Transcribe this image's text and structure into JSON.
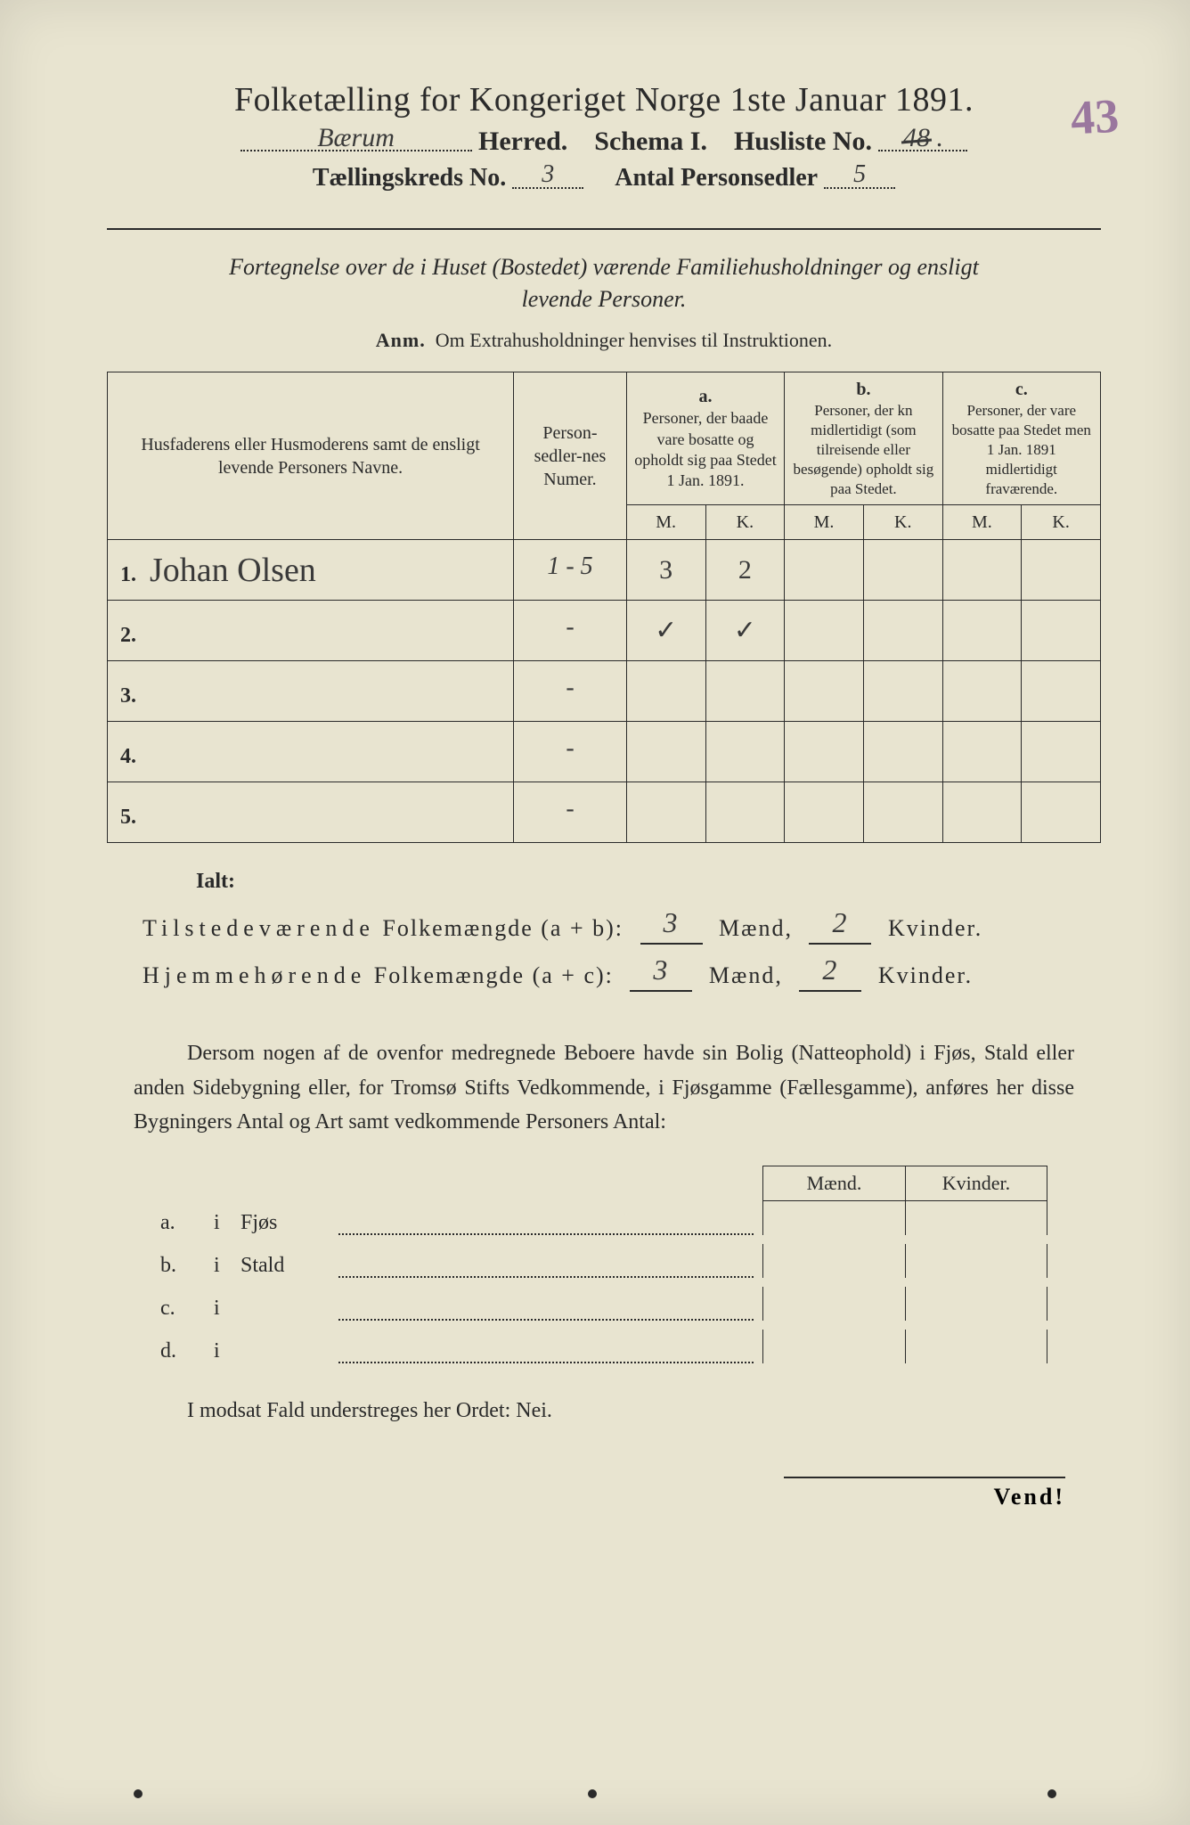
{
  "colors": {
    "paper": "#e8e4d0",
    "ink": "#2a2a2a",
    "handwriting": "#3a3a3a",
    "stamp": "#7a4a8a",
    "background": "#0a0a0a"
  },
  "header": {
    "title": "Folketælling for Kongeriget Norge 1ste Januar 1891.",
    "herred_label": "Herred.",
    "herred_value": "Bærum",
    "schema_label": "Schema I.",
    "husliste_label": "Husliste No.",
    "husliste_value_struck": "48",
    "husliste_value": ".",
    "stamp_value": "43",
    "tkreds_label": "Tællingskreds No.",
    "tkreds_value": "3",
    "antal_label": "Antal Personsedler",
    "antal_value": "5"
  },
  "subhead": {
    "line1": "Fortegnelse over de i Huset (Bostedet) værende Familiehusholdninger og ensligt",
    "line2": "levende Personer.",
    "anm_label": "Anm.",
    "anm_text": "Om Extrahusholdninger henvises til Instruktionen."
  },
  "table": {
    "columns": {
      "names_header": "Husfaderens eller Husmoderens samt de ensligt levende Personers Navne.",
      "numer_header": "Person-sedler-nes Numer.",
      "a_label": "a.",
      "a_text": "Personer, der baade vare bosatte og opholdt sig paa Stedet 1 Jan. 1891.",
      "b_label": "b.",
      "b_text": "Personer, der kn midlertidigt (som tilreisende eller besøgende) opholdt sig paa Stedet.",
      "c_label": "c.",
      "c_text": "Personer, der vare bosatte paa Stedet men 1 Jan. 1891 midlertidigt fraværende.",
      "m_label": "M.",
      "k_label": "K."
    },
    "rows": [
      {
        "n": "1.",
        "name": "Johan Olsen",
        "numer": "1 - 5",
        "aM": "3",
        "aK": "2",
        "bM": "",
        "bK": "",
        "cM": "",
        "cK": ""
      },
      {
        "n": "2.",
        "name": "",
        "numer": "-",
        "aM": "✓",
        "aK": "✓",
        "bM": "",
        "bK": "",
        "cM": "",
        "cK": ""
      },
      {
        "n": "3.",
        "name": "",
        "numer": "-",
        "aM": "",
        "aK": "",
        "bM": "",
        "bK": "",
        "cM": "",
        "cK": ""
      },
      {
        "n": "4.",
        "name": "",
        "numer": "-",
        "aM": "",
        "aK": "",
        "bM": "",
        "bK": "",
        "cM": "",
        "cK": ""
      },
      {
        "n": "5.",
        "name": "",
        "numer": "-",
        "aM": "",
        "aK": "",
        "bM": "",
        "bK": "",
        "cM": "",
        "cK": ""
      }
    ]
  },
  "totals": {
    "ialt": "Ialt:",
    "line1_label_a": "Tilstedeværende",
    "line1_label_b": "Folkemængde (a + b):",
    "line2_label_a": "Hjemmehørende",
    "line2_label_b": "Folkemængde (a + c):",
    "maend": "Mænd,",
    "kvinder": "Kvinder.",
    "ab_m": "3",
    "ab_k": "2",
    "ac_m": "3",
    "ac_k": "2"
  },
  "bodytext": {
    "p1": "Dersom nogen af de ovenfor medregnede Beboere havde sin Bolig (Natteophold) i Fjøs, Stald eller anden Sidebygning eller, for Tromsø Stifts Vedkommende, i Fjøsgamme (Fællesgamme), anføres her disse Bygningers Antal og Art samt vedkommende Personers Antal:"
  },
  "mk": {
    "maend": "Mænd.",
    "kvinder": "Kvinder."
  },
  "blist": {
    "rows": [
      {
        "a": "a.",
        "i": "i",
        "word": "Fjøs"
      },
      {
        "a": "b.",
        "i": "i",
        "word": "Stald"
      },
      {
        "a": "c.",
        "i": "i",
        "word": ""
      },
      {
        "a": "d.",
        "i": "i",
        "word": ""
      }
    ]
  },
  "nei": "I modsat Fald understreges her Ordet: Nei.",
  "vend": "Vend!"
}
